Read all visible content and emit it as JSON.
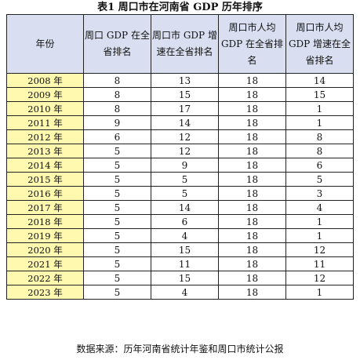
{
  "title": "表1 周口市在河南省 GDP 历年排序",
  "table": {
    "headers": [
      "年份",
      "周口 GDP 在全省排名",
      "周口市 GDP 增速在全省排名",
      "周口市人均 GDP 在全省排名",
      "周口市人均 GDP 增速在全省排名"
    ],
    "rows": [
      {
        "year": "2008 年",
        "gdp_rank": "8",
        "gdp_growth_rank": "13",
        "per_capita_rank": "18",
        "per_capita_growth_rank": "14"
      },
      {
        "year": "2009 年",
        "gdp_rank": "8",
        "gdp_growth_rank": "15",
        "per_capita_rank": "18",
        "per_capita_growth_rank": "15"
      },
      {
        "year": "2010 年",
        "gdp_rank": "8",
        "gdp_growth_rank": "17",
        "per_capita_rank": "18",
        "per_capita_growth_rank": "1"
      },
      {
        "year": "2011 年",
        "gdp_rank": "9",
        "gdp_growth_rank": "14",
        "per_capita_rank": "18",
        "per_capita_growth_rank": "1"
      },
      {
        "year": "2012 年",
        "gdp_rank": "6",
        "gdp_growth_rank": "12",
        "per_capita_rank": "18",
        "per_capita_growth_rank": "8"
      },
      {
        "year": "2013 年",
        "gdp_rank": "5",
        "gdp_growth_rank": "12",
        "per_capita_rank": "18",
        "per_capita_growth_rank": "8"
      },
      {
        "year": "2014 年",
        "gdp_rank": "5",
        "gdp_growth_rank": "9",
        "per_capita_rank": "18",
        "per_capita_growth_rank": "6"
      },
      {
        "year": "2015 年",
        "gdp_rank": "5",
        "gdp_growth_rank": "5",
        "per_capita_rank": "18",
        "per_capita_growth_rank": "5"
      },
      {
        "year": "2016 年",
        "gdp_rank": "5",
        "gdp_growth_rank": "5",
        "per_capita_rank": "18",
        "per_capita_growth_rank": "3"
      },
      {
        "year": "2017 年",
        "gdp_rank": "5",
        "gdp_growth_rank": "14",
        "per_capita_rank": "18",
        "per_capita_growth_rank": "4"
      },
      {
        "year": "2018 年",
        "gdp_rank": "5",
        "gdp_growth_rank": "6",
        "per_capita_rank": "18",
        "per_capita_growth_rank": "1"
      },
      {
        "year": "2019 年",
        "gdp_rank": "5",
        "gdp_growth_rank": "4",
        "per_capita_rank": "18",
        "per_capita_growth_rank": "1"
      },
      {
        "year": "2020 年",
        "gdp_rank": "5",
        "gdp_growth_rank": "15",
        "per_capita_rank": "18",
        "per_capita_growth_rank": "12"
      },
      {
        "year": "2021 年",
        "gdp_rank": "5",
        "gdp_growth_rank": "11",
        "per_capita_rank": "18",
        "per_capita_growth_rank": "11"
      },
      {
        "year": "2022 年",
        "gdp_rank": "5",
        "gdp_growth_rank": "15",
        "per_capita_rank": "18",
        "per_capita_growth_rank": "12"
      },
      {
        "year": "2023 年",
        "gdp_rank": "5",
        "gdp_growth_rank": "4",
        "per_capita_rank": "18",
        "per_capita_growth_rank": "1"
      }
    ]
  },
  "source": "数据来源：历年河南省统计年鉴和周口市统计公报",
  "colors": {
    "header_bg": "#d9dff0",
    "year_bg": "#fff9b0",
    "border": "#222222"
  }
}
